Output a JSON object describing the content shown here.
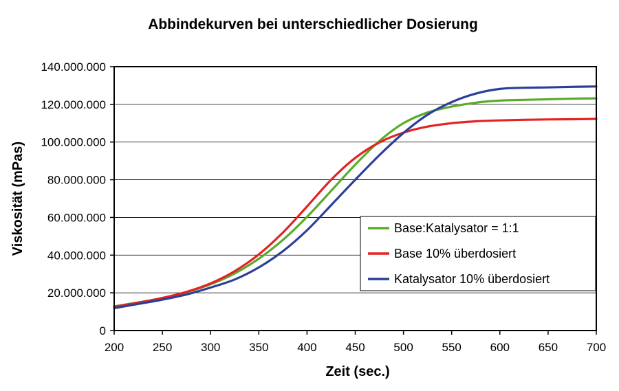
{
  "chart_data": {
    "type": "line",
    "title": "Abbindekurven bei unterschiedlicher Dosierung",
    "xlabel": "Zeit (sec.)",
    "ylabel": "Viskosität (mPas)",
    "xlim": [
      200,
      700
    ],
    "ylim": [
      0,
      140000000
    ],
    "x_ticks": [
      "200",
      "250",
      "300",
      "350",
      "400",
      "450",
      "500",
      "550",
      "600",
      "650",
      "700"
    ],
    "y_ticks": [
      "0",
      "20.000.000",
      "40.000.000",
      "60.000.000",
      "80.000.000",
      "100.000.000",
      "120.000.000",
      "140.000.000"
    ],
    "y_tick_values": [
      0,
      20000000,
      40000000,
      60000000,
      80000000,
      100000000,
      120000000,
      140000000
    ],
    "grid": "horizontal",
    "legend_position": "right",
    "x": [
      200,
      225,
      250,
      275,
      300,
      325,
      350,
      375,
      400,
      425,
      450,
      475,
      500,
      525,
      550,
      575,
      600,
      625,
      650,
      675,
      700
    ],
    "series": [
      {
        "name": "Base:Katalysator = 1:1",
        "color": "#5aab2a",
        "values": [
          12800000,
          14900000,
          17200000,
          20300000,
          24500000,
          30300000,
          38100000,
          48100000,
          60300000,
          74100000,
          88000000,
          100500000,
          110000000,
          115700000,
          118800000,
          120900000,
          122000000,
          122400000,
          122700000,
          123000000,
          123200000
        ]
      },
      {
        "name": "Base 10% überdosiert",
        "color": "#e32224",
        "values": [
          12600000,
          14800000,
          17300000,
          20500000,
          25000000,
          31500000,
          40400000,
          52000000,
          65800000,
          80000000,
          91600000,
          99800000,
          105000000,
          108200000,
          110000000,
          111000000,
          111500000,
          111800000,
          112000000,
          112100000,
          112300000
        ]
      },
      {
        "name": "Katalysator 10% überdosiert",
        "color": "#2b3e9a",
        "values": [
          11900000,
          14100000,
          16400000,
          19100000,
          22800000,
          27100000,
          33500000,
          42100000,
          53200000,
          66500000,
          80000000,
          93000000,
          104800000,
          114500000,
          121200000,
          125700000,
          128200000,
          128800000,
          129000000,
          129300000,
          129500000
        ]
      }
    ]
  }
}
